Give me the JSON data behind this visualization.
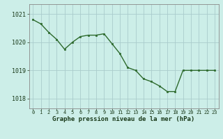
{
  "hours": [
    0,
    1,
    2,
    3,
    4,
    5,
    6,
    7,
    8,
    9,
    10,
    11,
    12,
    13,
    14,
    15,
    16,
    17,
    18,
    19,
    20,
    21,
    22,
    23
  ],
  "pressure": [
    1020.8,
    1020.65,
    1020.35,
    1020.1,
    1019.75,
    1020.0,
    1020.2,
    1020.25,
    1020.25,
    1020.3,
    1019.95,
    1019.6,
    1019.1,
    1019.0,
    1018.7,
    1018.6,
    1018.45,
    1018.25,
    1018.25,
    1019.0,
    1019.0,
    1019.0,
    1019.0,
    1019.0
  ],
  "line_color": "#2d6a2d",
  "marker_color": "#2d6a2d",
  "bg_color": "#cceee8",
  "grid_color": "#aacccc",
  "xlabel": "Graphe pression niveau de la mer (hPa)",
  "xlabel_color": "#1a3a1a",
  "ytick_labels": [
    "1018",
    "1019",
    "1020",
    "1021"
  ],
  "ytick_values": [
    1018,
    1019,
    1020,
    1021
  ],
  "ylim": [
    1017.65,
    1021.35
  ],
  "xlim": [
    -0.5,
    23.5
  ]
}
